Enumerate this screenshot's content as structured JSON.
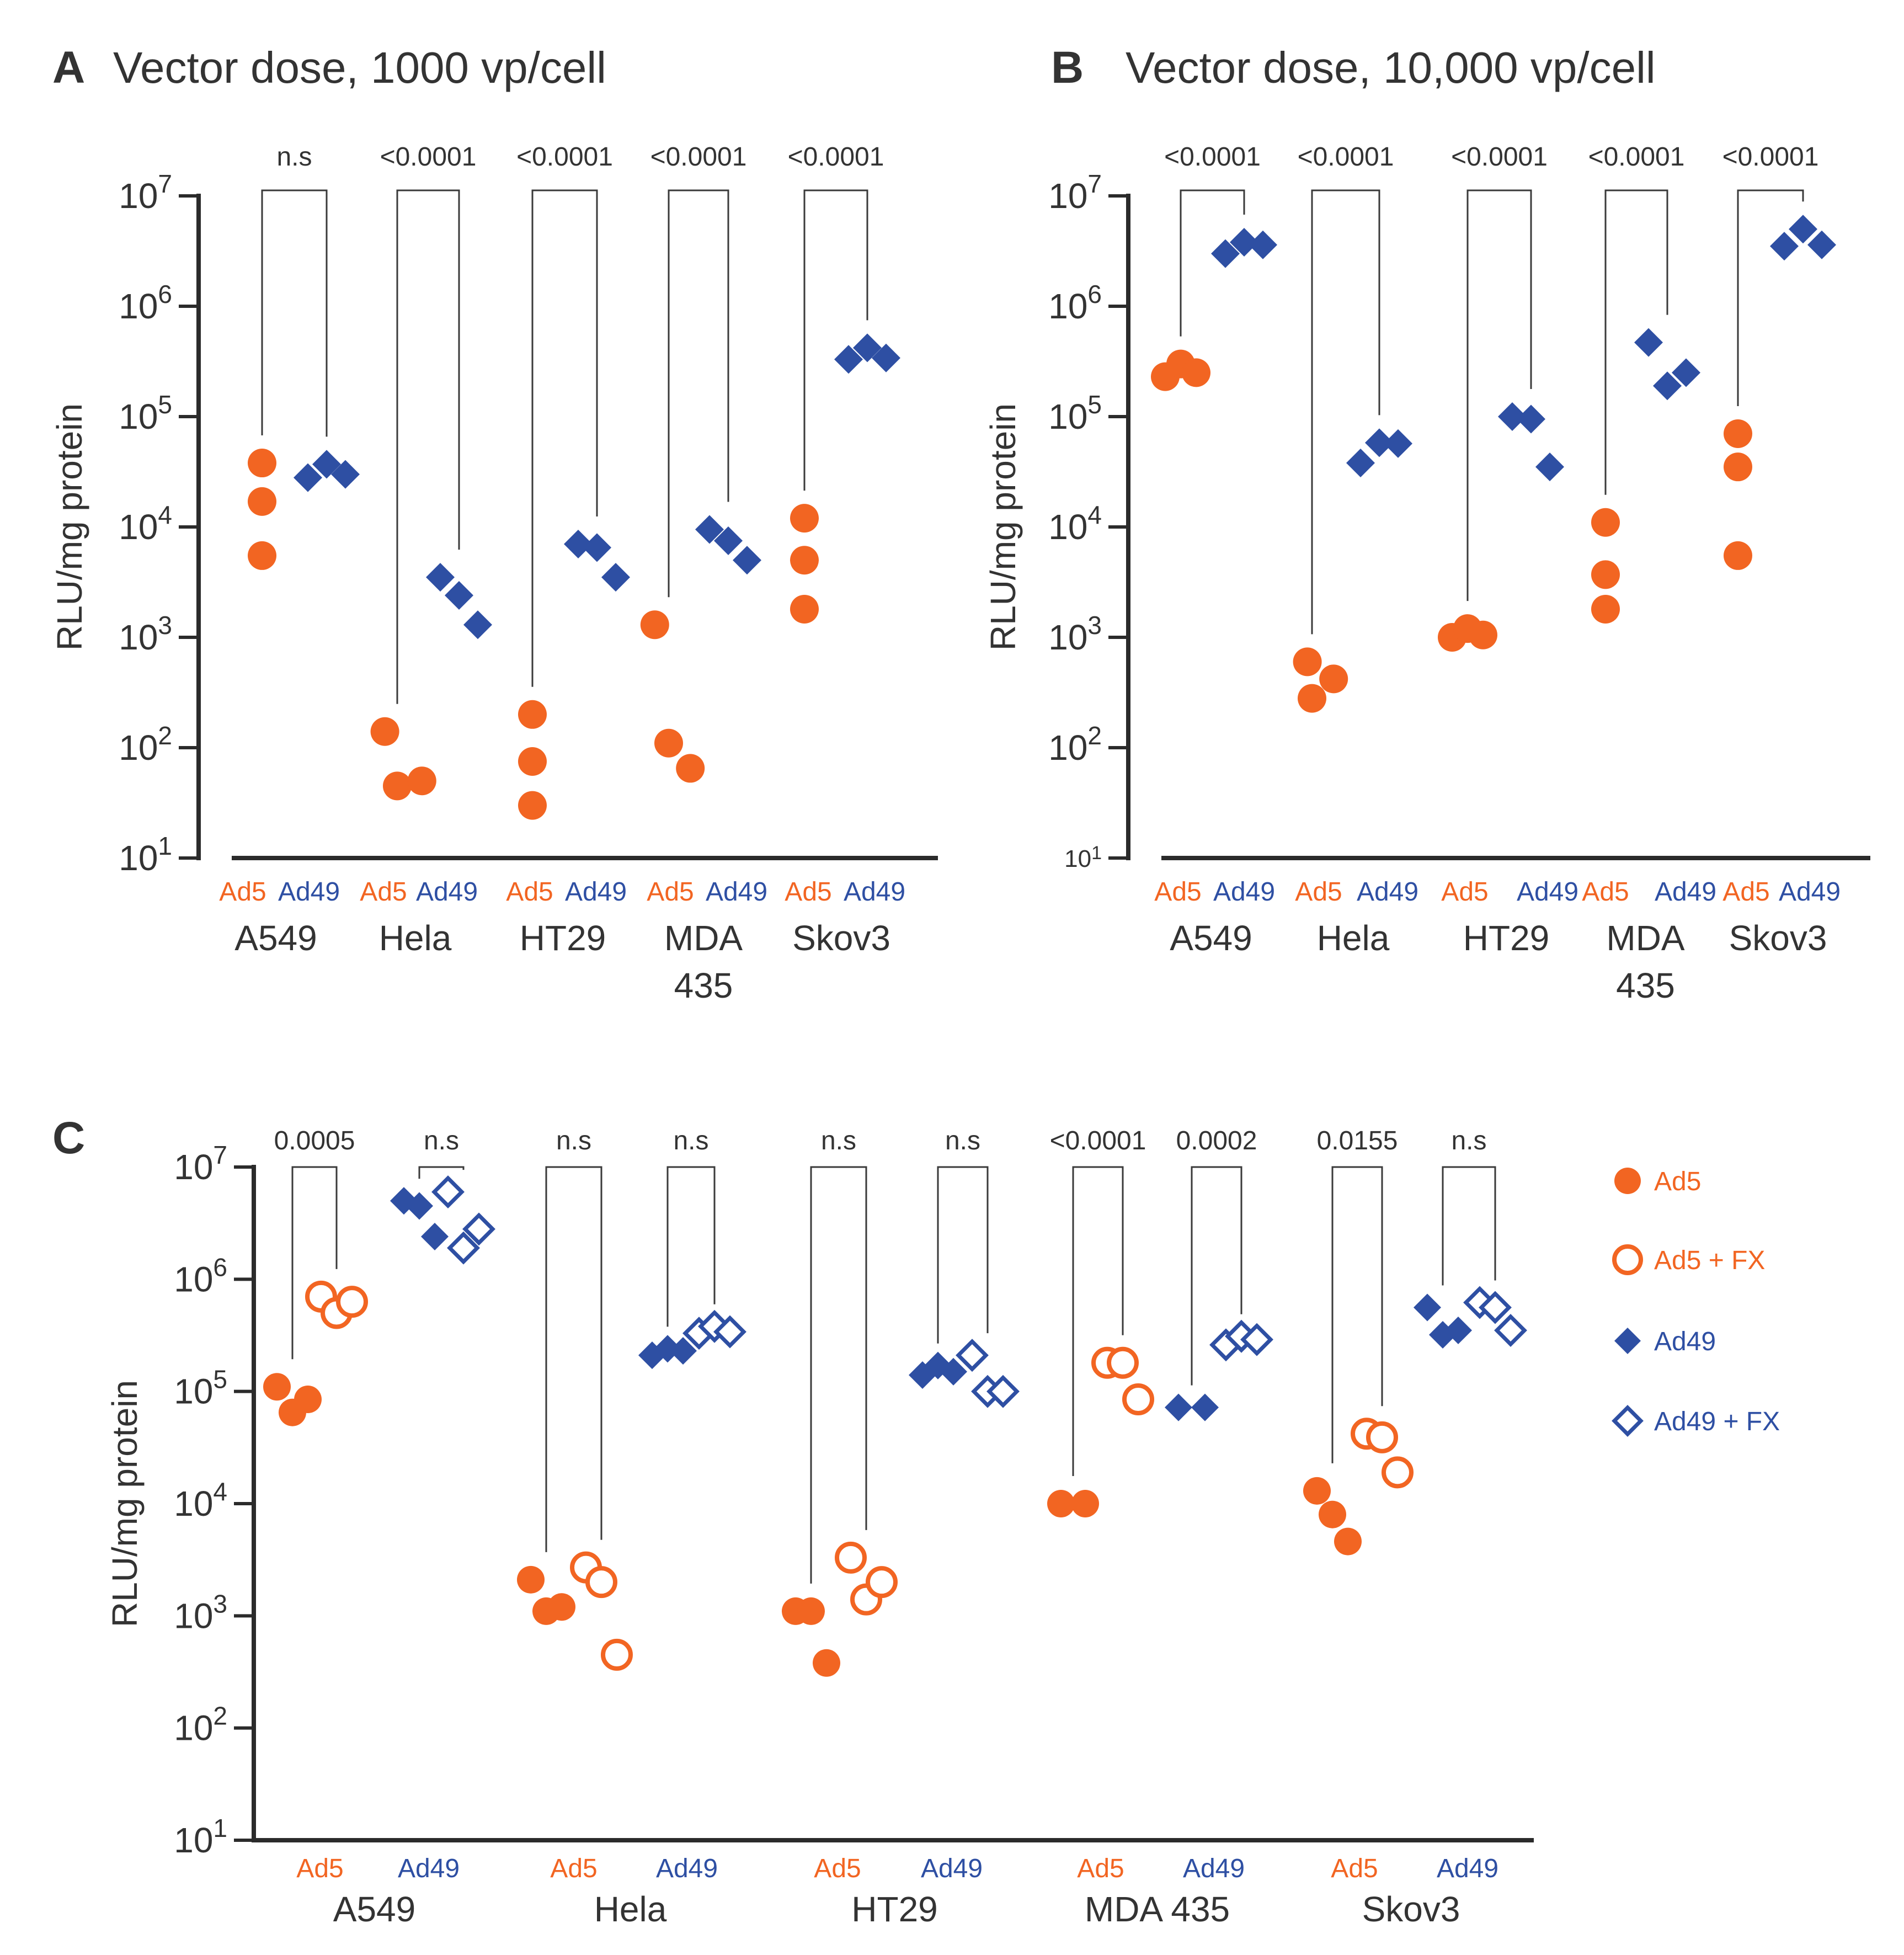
{
  "chart_data": [
    {
      "type": "scatter",
      "panel": "A",
      "title": "Vector dose, 1000 vp/cell",
      "ylabel": "RLU/mg protein",
      "yscale": "log",
      "ylim": [
        10,
        10000000
      ],
      "yticks": [
        1,
        2,
        3,
        4,
        5,
        6,
        7
      ],
      "groups": [
        "Ad5",
        "Ad49"
      ],
      "colors": {
        "Ad5": "#f26522",
        "Ad49": "#2e4fa3"
      },
      "cells": [
        {
          "name": "A549",
          "Ad5": [
            38000,
            17000,
            5500
          ],
          "Ad49": [
            28000,
            37000,
            30000
          ],
          "p": "n.s"
        },
        {
          "name": "Hela",
          "Ad5": [
            140,
            45,
            50
          ],
          "Ad49": [
            3500,
            2400,
            1300
          ],
          "p": "<0.0001"
        },
        {
          "name": "HT29",
          "Ad5": [
            200,
            75,
            30
          ],
          "Ad49": [
            7000,
            6500,
            3500
          ],
          "p": "<0.0001"
        },
        {
          "name": "MDA\n435",
          "Ad5": [
            1300,
            110,
            65
          ],
          "Ad49": [
            9500,
            7500,
            5000
          ],
          "p": "<0.0001"
        },
        {
          "name": "Skov3",
          "Ad5": [
            12000,
            5000,
            1800
          ],
          "Ad49": [
            330000,
            420000,
            340000
          ],
          "p": "<0.0001"
        }
      ]
    },
    {
      "type": "scatter",
      "panel": "B",
      "title": "Vector dose, 10,000 vp/cell",
      "ylabel": "RLU/mg protein",
      "yscale": "log",
      "ylim": [
        10,
        10000000
      ],
      "yticks": [
        1,
        2,
        3,
        4,
        5,
        6,
        7
      ],
      "groups": [
        "Ad5",
        "Ad49"
      ],
      "colors": {
        "Ad5": "#f26522",
        "Ad49": "#2e4fa3"
      },
      "cells": [
        {
          "name": "A549",
          "Ad5": [
            230000,
            300000,
            250000
          ],
          "Ad49": [
            3000000,
            3800000,
            3600000
          ],
          "p": "<0.0001"
        },
        {
          "name": "Hela",
          "Ad5": [
            600,
            280,
            420
          ],
          "Ad49": [
            38000,
            58000,
            57000
          ],
          "p": "<0.0001"
        },
        {
          "name": "HT29",
          "Ad5": [
            1000,
            1200,
            1050
          ],
          "Ad49": [
            100000,
            95000,
            35000
          ],
          "p": "<0.0001"
        },
        {
          "name": "MDA\n435",
          "Ad5": [
            11000,
            3700,
            1800
          ],
          "Ad49": [
            470000,
            190000,
            250000
          ],
          "p": "<0.0001"
        },
        {
          "name": "Skov3",
          "Ad5": [
            70000,
            35000,
            5500
          ],
          "Ad49": [
            3500000,
            5000000,
            3600000
          ],
          "p": "<0.0001"
        }
      ]
    },
    {
      "type": "scatter",
      "panel": "C",
      "title": "",
      "ylabel": "RLU/mg protein",
      "yscale": "log",
      "ylim": [
        10,
        10000000
      ],
      "yticks": [
        1,
        2,
        3,
        4,
        5,
        6,
        7
      ],
      "series": [
        {
          "name": "Ad5",
          "marker": "filled-circle",
          "color": "#f26522"
        },
        {
          "name": "Ad5 + FX",
          "marker": "open-circle",
          "color": "#f26522"
        },
        {
          "name": "Ad49",
          "marker": "filled-diamond",
          "color": "#2e4fa3"
        },
        {
          "name": "Ad49 + FX",
          "marker": "open-diamond",
          "color": "#2e4fa3"
        }
      ],
      "group_labels": [
        "Ad5",
        "Ad49"
      ],
      "cells": [
        {
          "name": "A549",
          "Ad5": [
            110000,
            65000,
            85000
          ],
          "Ad5 + FX": [
            700000,
            500000,
            630000
          ],
          "Ad49": [
            5000000,
            4500000,
            2400000
          ],
          "Ad49 + FX": [
            6000000,
            1900000,
            2800000
          ],
          "p_ad5": "0.0005",
          "p_ad49": "n.s"
        },
        {
          "name": "Hela",
          "Ad5": [
            2100,
            1100,
            1200
          ],
          "Ad5 + FX": [
            2700,
            2000,
            450
          ],
          "Ad49": [
            210000,
            240000,
            230000
          ],
          "Ad49 + FX": [
            330000,
            380000,
            340000
          ],
          "p_ad5": "n.s",
          "p_ad49": "n.s"
        },
        {
          "name": "HT29",
          "Ad5": [
            1100,
            1100,
            380
          ],
          "Ad5 + FX": [
            3300,
            1400,
            2000
          ],
          "Ad49": [
            140000,
            170000,
            150000
          ],
          "Ad49 + FX": [
            210000,
            100000,
            100000
          ],
          "p_ad5": "n.s",
          "p_ad49": "n.s"
        },
        {
          "name": "MDA 435",
          "Ad5": [
            10000,
            10000
          ],
          "Ad5 + FX": [
            180000,
            180000,
            85000
          ],
          "Ad49": [
            72000,
            72000
          ],
          "Ad49 + FX": [
            260000,
            310000,
            290000
          ],
          "p_ad5": "<0.0001",
          "p_ad49": "0.0002"
        },
        {
          "name": "Skov3",
          "Ad5": [
            13000,
            8000,
            4600
          ],
          "Ad5 + FX": [
            42000,
            39000,
            19000
          ],
          "Ad49": [
            560000,
            320000,
            350000
          ],
          "Ad49 + FX": [
            620000,
            560000,
            350000
          ],
          "p_ad5": "0.0155",
          "p_ad49": "n.s"
        }
      ]
    }
  ]
}
